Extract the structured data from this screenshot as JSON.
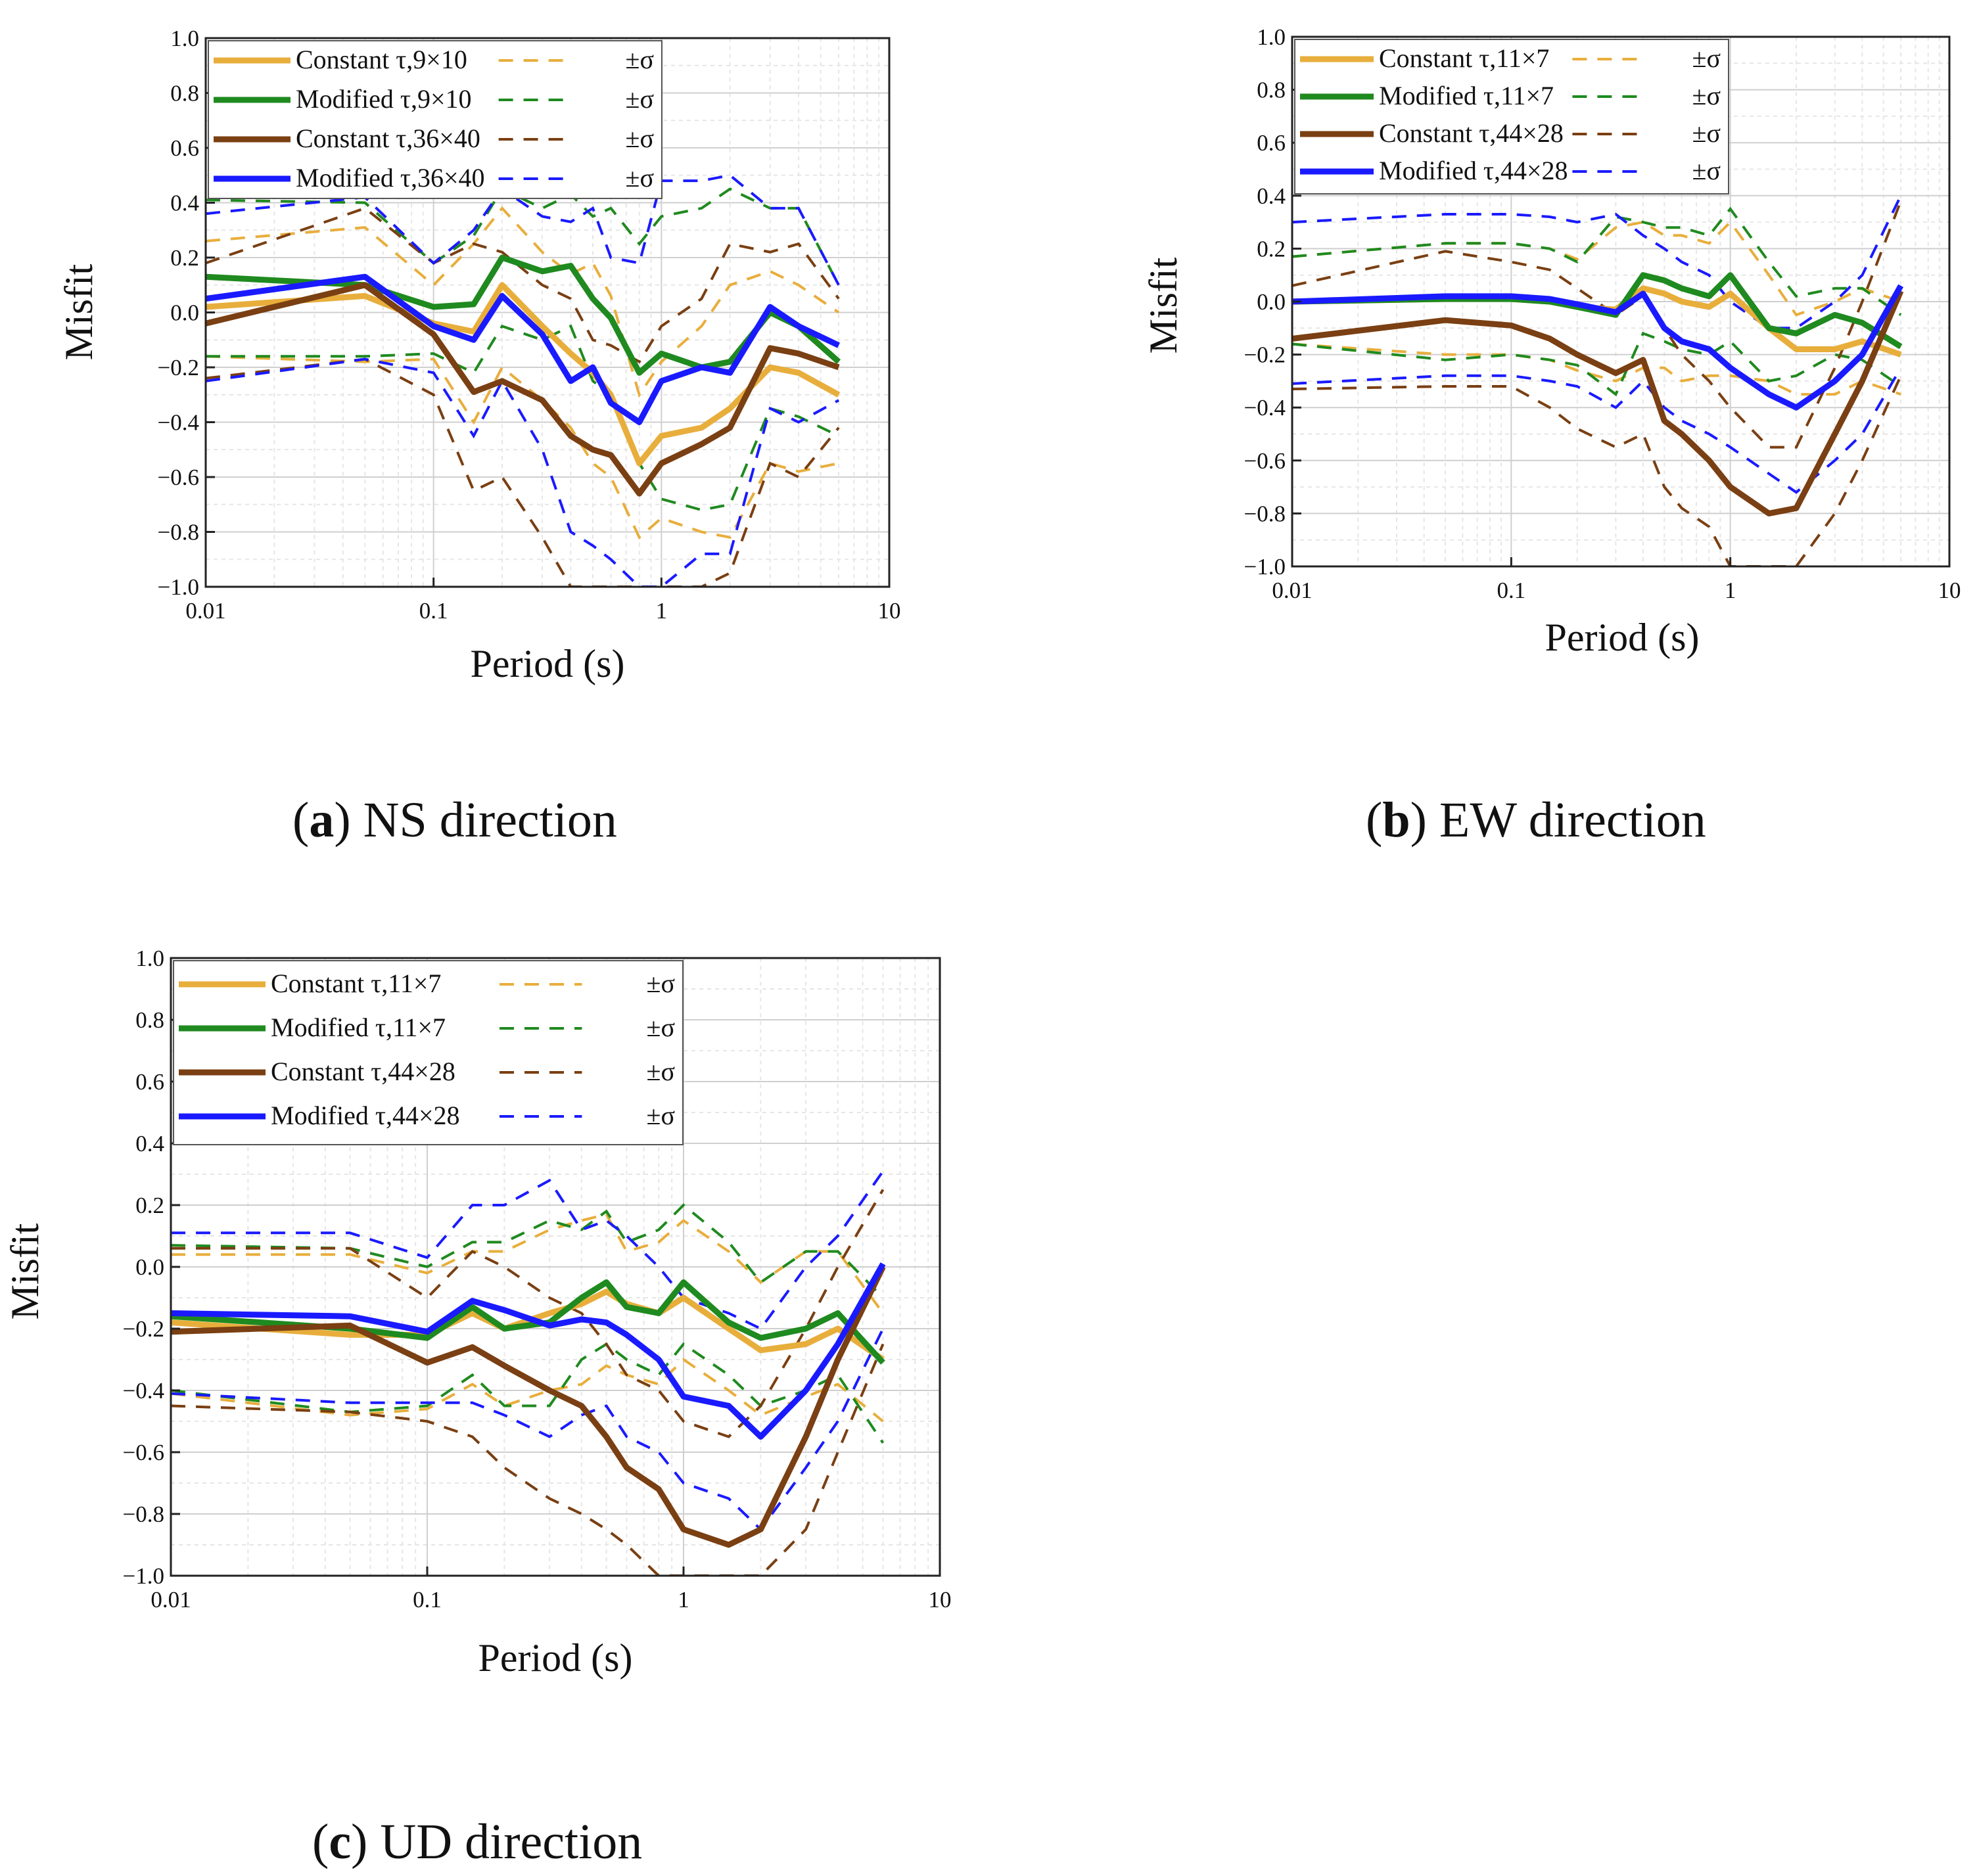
{
  "figure": {
    "colors": {
      "constant_small": "#e8ae3c",
      "modified_small": "#1f8a1f",
      "constant_large": "#7a3f12",
      "modified_large": "#1a1aff",
      "grid_major": "#cfcfcf",
      "grid_minor": "#e6e6e6"
    }
  },
  "chart_data": [
    {
      "type": "line",
      "panel": "a",
      "caption_letter": "a",
      "caption_text": "NS direction",
      "xlabel": "Period (s)",
      "ylabel": "Misfit",
      "xscale": "log",
      "xlim": [
        0.01,
        10
      ],
      "ylim": [
        -1.0,
        1.0
      ],
      "xticks": [
        0.01,
        0.1,
        1,
        10
      ],
      "xtick_labels": [
        "0.01",
        "0.1",
        "1",
        "10"
      ],
      "yticks": [
        1.0,
        0.8,
        0.6,
        0.4,
        0.2,
        0.0,
        -0.2,
        -0.4,
        -0.6,
        -0.8,
        -1.0
      ],
      "ytick_labels": [
        "1.0",
        "0.8",
        "0.6",
        "0.4",
        "0.2",
        "0.0",
        "−0.2",
        "−0.4",
        "−0.6",
        "−0.8",
        "−1.0"
      ],
      "grid": true,
      "legend_position": "top-left",
      "sigma_label": "±σ",
      "x": [
        0.01,
        0.05,
        0.1,
        0.15,
        0.2,
        0.3,
        0.4,
        0.5,
        0.6,
        0.8,
        1.0,
        1.5,
        2.0,
        3.0,
        4.0,
        6.0
      ],
      "series": [
        {
          "name": "Constant τ,9×10",
          "color_key": "constant_small",
          "values": [
            0.02,
            0.06,
            -0.04,
            -0.07,
            0.1,
            -0.05,
            -0.15,
            -0.22,
            -0.3,
            -0.55,
            -0.45,
            -0.42,
            -0.35,
            -0.2,
            -0.22,
            -0.3
          ],
          "sigma_upper": [
            0.26,
            0.31,
            0.1,
            0.25,
            0.38,
            0.22,
            0.14,
            0.18,
            0.06,
            -0.3,
            -0.18,
            -0.05,
            0.1,
            0.15,
            0.1,
            0.0
          ],
          "sigma_lower": [
            -0.16,
            -0.18,
            -0.17,
            -0.4,
            -0.2,
            -0.32,
            -0.42,
            -0.55,
            -0.6,
            -0.82,
            -0.75,
            -0.8,
            -0.82,
            -0.55,
            -0.58,
            -0.55
          ]
        },
        {
          "name": "Modified τ,9×10",
          "color_key": "modified_small",
          "values": [
            0.13,
            0.1,
            0.02,
            0.03,
            0.2,
            0.15,
            0.17,
            0.05,
            -0.02,
            -0.22,
            -0.15,
            -0.2,
            -0.18,
            0.0,
            -0.05,
            -0.18
          ],
          "sigma_upper": [
            0.41,
            0.4,
            0.18,
            0.28,
            0.45,
            0.38,
            0.43,
            0.35,
            0.38,
            0.25,
            0.35,
            0.38,
            0.45,
            0.38,
            0.38,
            0.1
          ],
          "sigma_lower": [
            -0.16,
            -0.16,
            -0.15,
            -0.22,
            -0.05,
            -0.1,
            -0.05,
            -0.25,
            -0.3,
            -0.55,
            -0.68,
            -0.72,
            -0.7,
            -0.35,
            -0.38,
            -0.45
          ]
        },
        {
          "name": "Constant τ,36×40",
          "color_key": "constant_large",
          "values": [
            -0.04,
            0.1,
            -0.08,
            -0.29,
            -0.25,
            -0.32,
            -0.45,
            -0.5,
            -0.52,
            -0.66,
            -0.55,
            -0.48,
            -0.42,
            -0.13,
            -0.15,
            -0.2
          ],
          "sigma_upper": [
            0.18,
            0.38,
            0.18,
            0.25,
            0.22,
            0.1,
            0.05,
            -0.1,
            -0.12,
            -0.18,
            -0.05,
            0.05,
            0.25,
            0.22,
            0.25,
            0.05
          ],
          "sigma_lower": [
            -0.24,
            -0.17,
            -0.3,
            -0.65,
            -0.6,
            -0.82,
            -1.0,
            -1.0,
            -1.0,
            -1.0,
            -1.0,
            -1.0,
            -0.95,
            -0.55,
            -0.6,
            -0.42
          ]
        },
        {
          "name": "Modified τ,36×40",
          "color_key": "modified_large",
          "values": [
            0.05,
            0.13,
            -0.05,
            -0.1,
            0.06,
            -0.08,
            -0.25,
            -0.2,
            -0.33,
            -0.4,
            -0.25,
            -0.2,
            -0.22,
            0.02,
            -0.05,
            -0.12
          ],
          "sigma_upper": [
            0.36,
            0.42,
            0.18,
            0.3,
            0.45,
            0.35,
            0.33,
            0.38,
            0.2,
            0.18,
            0.48,
            0.48,
            0.5,
            0.38,
            0.38,
            0.1
          ],
          "sigma_lower": [
            -0.25,
            -0.17,
            -0.22,
            -0.45,
            -0.25,
            -0.5,
            -0.8,
            -0.85,
            -0.9,
            -1.0,
            -1.0,
            -0.88,
            -0.88,
            -0.35,
            -0.4,
            -0.32
          ]
        }
      ]
    },
    {
      "type": "line",
      "panel": "b",
      "caption_letter": "b",
      "caption_text": "EW direction",
      "xlabel": "Period (s)",
      "ylabel": "Misfit",
      "xscale": "log",
      "xlim": [
        0.01,
        10
      ],
      "ylim": [
        -1.0,
        1.0
      ],
      "xticks": [
        0.01,
        0.1,
        1,
        10
      ],
      "xtick_labels": [
        "0.01",
        "0.1",
        "1",
        "10"
      ],
      "yticks": [
        1.0,
        0.8,
        0.6,
        0.4,
        0.2,
        0.0,
        -0.2,
        -0.4,
        -0.6,
        -0.8,
        -1.0
      ],
      "ytick_labels": [
        "1.0",
        "0.8",
        "0.6",
        "0.4",
        "0.2",
        "0.0",
        "−0.2",
        "−0.4",
        "−0.6",
        "−0.8",
        "−1.0"
      ],
      "grid": true,
      "legend_position": "top-left",
      "sigma_label": "±σ",
      "x": [
        0.01,
        0.05,
        0.1,
        0.15,
        0.2,
        0.3,
        0.4,
        0.5,
        0.6,
        0.8,
        1.0,
        1.5,
        2.0,
        3.0,
        4.0,
        6.0
      ],
      "series": [
        {
          "name": "Constant τ,11×7",
          "color_key": "constant_small",
          "values": [
            0.0,
            0.01,
            0.01,
            0.0,
            -0.02,
            -0.03,
            0.05,
            0.03,
            0.0,
            -0.02,
            0.03,
            -0.1,
            -0.18,
            -0.18,
            -0.15,
            -0.2
          ],
          "sigma_upper": [
            0.17,
            0.22,
            0.22,
            0.2,
            0.16,
            0.28,
            0.3,
            0.25,
            0.25,
            0.22,
            0.3,
            0.1,
            -0.05,
            0.0,
            0.05,
            0.0
          ],
          "sigma_lower": [
            -0.16,
            -0.2,
            -0.2,
            -0.22,
            -0.26,
            -0.3,
            -0.25,
            -0.25,
            -0.3,
            -0.28,
            -0.28,
            -0.3,
            -0.35,
            -0.35,
            -0.3,
            -0.35
          ]
        },
        {
          "name": "Modified τ,11×7",
          "color_key": "modified_small",
          "values": [
            0.0,
            0.01,
            0.01,
            0.0,
            -0.02,
            -0.05,
            0.1,
            0.08,
            0.05,
            0.02,
            0.1,
            -0.1,
            -0.12,
            -0.05,
            -0.08,
            -0.17
          ],
          "sigma_upper": [
            0.17,
            0.22,
            0.22,
            0.2,
            0.15,
            0.32,
            0.3,
            0.28,
            0.28,
            0.25,
            0.35,
            0.15,
            0.02,
            0.05,
            0.05,
            -0.05
          ],
          "sigma_lower": [
            -0.16,
            -0.22,
            -0.2,
            -0.22,
            -0.24,
            -0.35,
            -0.12,
            -0.15,
            -0.18,
            -0.2,
            -0.15,
            -0.3,
            -0.28,
            -0.2,
            -0.22,
            -0.32
          ]
        },
        {
          "name": "Constant τ,44×28",
          "color_key": "constant_large",
          "values": [
            -0.14,
            -0.07,
            -0.09,
            -0.14,
            -0.2,
            -0.27,
            -0.22,
            -0.45,
            -0.5,
            -0.6,
            -0.7,
            -0.8,
            -0.78,
            -0.5,
            -0.3,
            0.04
          ],
          "sigma_upper": [
            0.06,
            0.19,
            0.15,
            0.12,
            0.05,
            -0.05,
            0.02,
            -0.1,
            -0.2,
            -0.3,
            -0.4,
            -0.55,
            -0.55,
            -0.25,
            0.0,
            0.38
          ],
          "sigma_lower": [
            -0.33,
            -0.32,
            -0.32,
            -0.4,
            -0.48,
            -0.55,
            -0.5,
            -0.7,
            -0.78,
            -0.85,
            -1.0,
            -1.0,
            -1.0,
            -0.8,
            -0.6,
            -0.28
          ]
        },
        {
          "name": "Modified τ,44×28",
          "color_key": "modified_large",
          "values": [
            0.0,
            0.02,
            0.02,
            0.01,
            -0.01,
            -0.04,
            0.03,
            -0.1,
            -0.15,
            -0.18,
            -0.25,
            -0.35,
            -0.4,
            -0.3,
            -0.2,
            0.06
          ],
          "sigma_upper": [
            0.3,
            0.33,
            0.33,
            0.32,
            0.3,
            0.33,
            0.25,
            0.2,
            0.15,
            0.1,
            0.0,
            -0.1,
            -0.1,
            0.0,
            0.1,
            0.4
          ],
          "sigma_lower": [
            -0.31,
            -0.28,
            -0.28,
            -0.3,
            -0.32,
            -0.4,
            -0.3,
            -0.4,
            -0.45,
            -0.5,
            -0.55,
            -0.65,
            -0.72,
            -0.6,
            -0.5,
            -0.25
          ]
        }
      ]
    },
    {
      "type": "line",
      "panel": "c",
      "caption_letter": "c",
      "caption_text": "UD direction",
      "xlabel": "Period (s)",
      "ylabel": "Misfit",
      "xscale": "log",
      "xlim": [
        0.01,
        10
      ],
      "ylim": [
        -1.0,
        1.0
      ],
      "xticks": [
        0.01,
        0.1,
        1,
        10
      ],
      "xtick_labels": [
        "0.01",
        "0.1",
        "1",
        "10"
      ],
      "yticks": [
        1.0,
        0.8,
        0.6,
        0.4,
        0.2,
        0.0,
        -0.2,
        -0.4,
        -0.6,
        -0.8,
        -1.0
      ],
      "ytick_labels": [
        "1.0",
        "0.8",
        "0.6",
        "0.4",
        "0.2",
        "0.0",
        "−0.2",
        "−0.4",
        "−0.6",
        "−0.8",
        "−1.0"
      ],
      "grid": true,
      "legend_position": "top-left",
      "sigma_label": "±σ",
      "x": [
        0.01,
        0.05,
        0.1,
        0.15,
        0.2,
        0.3,
        0.4,
        0.5,
        0.6,
        0.8,
        1.0,
        1.5,
        2.0,
        3.0,
        4.0,
        6.0
      ],
      "series": [
        {
          "name": "Constant τ,11×7",
          "color_key": "constant_small",
          "values": [
            -0.18,
            -0.22,
            -0.22,
            -0.15,
            -0.2,
            -0.15,
            -0.12,
            -0.08,
            -0.12,
            -0.15,
            -0.1,
            -0.2,
            -0.27,
            -0.25,
            -0.2,
            -0.3
          ],
          "sigma_upper": [
            0.04,
            0.04,
            -0.02,
            0.05,
            0.05,
            0.12,
            0.15,
            0.17,
            0.05,
            0.08,
            0.15,
            0.05,
            -0.05,
            0.05,
            0.05,
            -0.15
          ],
          "sigma_lower": [
            -0.41,
            -0.48,
            -0.46,
            -0.38,
            -0.45,
            -0.4,
            -0.38,
            -0.32,
            -0.35,
            -0.38,
            -0.3,
            -0.4,
            -0.48,
            -0.42,
            -0.38,
            -0.5
          ]
        },
        {
          "name": "Modified τ,11×7",
          "color_key": "modified_small",
          "values": [
            -0.16,
            -0.2,
            -0.23,
            -0.13,
            -0.2,
            -0.18,
            -0.1,
            -0.05,
            -0.13,
            -0.15,
            -0.05,
            -0.18,
            -0.23,
            -0.2,
            -0.15,
            -0.31
          ],
          "sigma_upper": [
            0.07,
            0.06,
            0.0,
            0.08,
            0.08,
            0.15,
            0.12,
            0.18,
            0.08,
            0.12,
            0.2,
            0.08,
            -0.05,
            0.05,
            0.05,
            -0.1
          ],
          "sigma_lower": [
            -0.4,
            -0.47,
            -0.45,
            -0.35,
            -0.45,
            -0.45,
            -0.3,
            -0.25,
            -0.3,
            -0.35,
            -0.25,
            -0.35,
            -0.45,
            -0.4,
            -0.35,
            -0.57
          ]
        },
        {
          "name": "Constant τ,44×28",
          "color_key": "constant_large",
          "values": [
            -0.21,
            -0.19,
            -0.31,
            -0.26,
            -0.32,
            -0.4,
            -0.45,
            -0.55,
            -0.65,
            -0.72,
            -0.85,
            -0.9,
            -0.85,
            -0.55,
            -0.3,
            0.0
          ],
          "sigma_upper": [
            0.06,
            0.06,
            -0.1,
            0.05,
            0.0,
            -0.1,
            -0.15,
            -0.25,
            -0.35,
            -0.4,
            -0.5,
            -0.55,
            -0.45,
            -0.2,
            0.0,
            0.25
          ],
          "sigma_lower": [
            -0.45,
            -0.47,
            -0.5,
            -0.55,
            -0.65,
            -0.75,
            -0.8,
            -0.85,
            -0.9,
            -1.0,
            -1.0,
            -1.0,
            -1.0,
            -0.85,
            -0.6,
            -0.25
          ]
        },
        {
          "name": "Modified τ,44×28",
          "color_key": "modified_large",
          "values": [
            -0.15,
            -0.16,
            -0.21,
            -0.11,
            -0.14,
            -0.19,
            -0.17,
            -0.18,
            -0.22,
            -0.3,
            -0.42,
            -0.45,
            -0.55,
            -0.4,
            -0.25,
            0.01
          ],
          "sigma_upper": [
            0.11,
            0.11,
            0.03,
            0.2,
            0.2,
            0.28,
            0.12,
            0.15,
            0.1,
            0.0,
            -0.1,
            -0.15,
            -0.2,
            0.0,
            0.1,
            0.31
          ],
          "sigma_lower": [
            -0.41,
            -0.44,
            -0.44,
            -0.44,
            -0.48,
            -0.55,
            -0.48,
            -0.45,
            -0.55,
            -0.6,
            -0.7,
            -0.75,
            -0.85,
            -0.65,
            -0.5,
            -0.2
          ]
        }
      ]
    }
  ]
}
